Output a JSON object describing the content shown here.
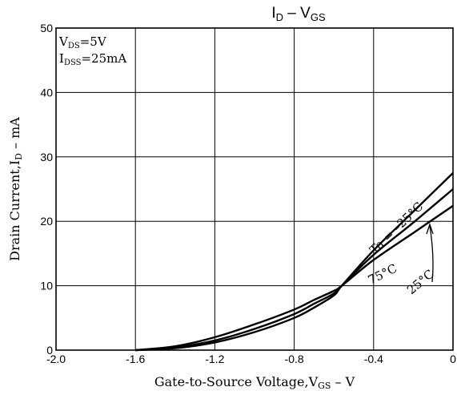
{
  "chart_data": {
    "type": "line",
    "title": {
      "main": "I",
      "sub": "D",
      "sep": " – ",
      "main2": "V",
      "sub2": "GS"
    },
    "xlabel": {
      "pre": "Gate-to-Source Voltage,V",
      "sub": "GS",
      "post": " – V"
    },
    "ylabel": {
      "pre": "Drain Current,I",
      "sub": "D",
      "post": " – mA"
    },
    "xlim": [
      -2.0,
      0
    ],
    "ylim": [
      0,
      50
    ],
    "x_ticks": [
      -2.0,
      -1.6,
      -1.2,
      -0.8,
      -0.4,
      0
    ],
    "x_tick_labels": [
      "-2.0",
      "-1.6",
      "-1.2",
      "-0.8",
      "-0.4",
      "0"
    ],
    "y_ticks": [
      0,
      10,
      20,
      30,
      40,
      50
    ],
    "y_tick_labels": [
      "0",
      "10",
      "20",
      "30",
      "40",
      "50"
    ],
    "grid": true,
    "conditions": [
      {
        "pre": "V",
        "sub": "DS",
        "post": "=5V"
      },
      {
        "pre": "I",
        "sub": "DSS",
        "post": "=25mA"
      }
    ],
    "series": [
      {
        "name": "Ta = –25°C",
        "x": [
          -1.6,
          -1.4,
          -1.2,
          -1.0,
          -0.8,
          -0.7,
          -0.6,
          -0.56,
          -0.4,
          -0.2,
          0
        ],
        "y": [
          0,
          0.3,
          1.2,
          2.8,
          5.0,
          6.6,
          8.5,
          10.0,
          15.5,
          21.5,
          27.5
        ]
      },
      {
        "name": "25°C",
        "x": [
          -1.6,
          -1.4,
          -1.2,
          -1.0,
          -0.8,
          -0.7,
          -0.6,
          -0.56,
          -0.4,
          -0.2,
          0
        ],
        "y": [
          0,
          0.4,
          1.5,
          3.3,
          5.6,
          7.2,
          8.8,
          10.0,
          14.8,
          19.8,
          25.0
        ]
      },
      {
        "name": "75°C",
        "x": [
          -1.6,
          -1.4,
          -1.2,
          -1.0,
          -0.8,
          -0.7,
          -0.6,
          -0.56,
          -0.4,
          -0.2,
          0
        ],
        "y": [
          0,
          0.6,
          2.0,
          4.0,
          6.3,
          7.8,
          9.2,
          10.0,
          14.0,
          18.2,
          22.4
        ]
      }
    ]
  }
}
